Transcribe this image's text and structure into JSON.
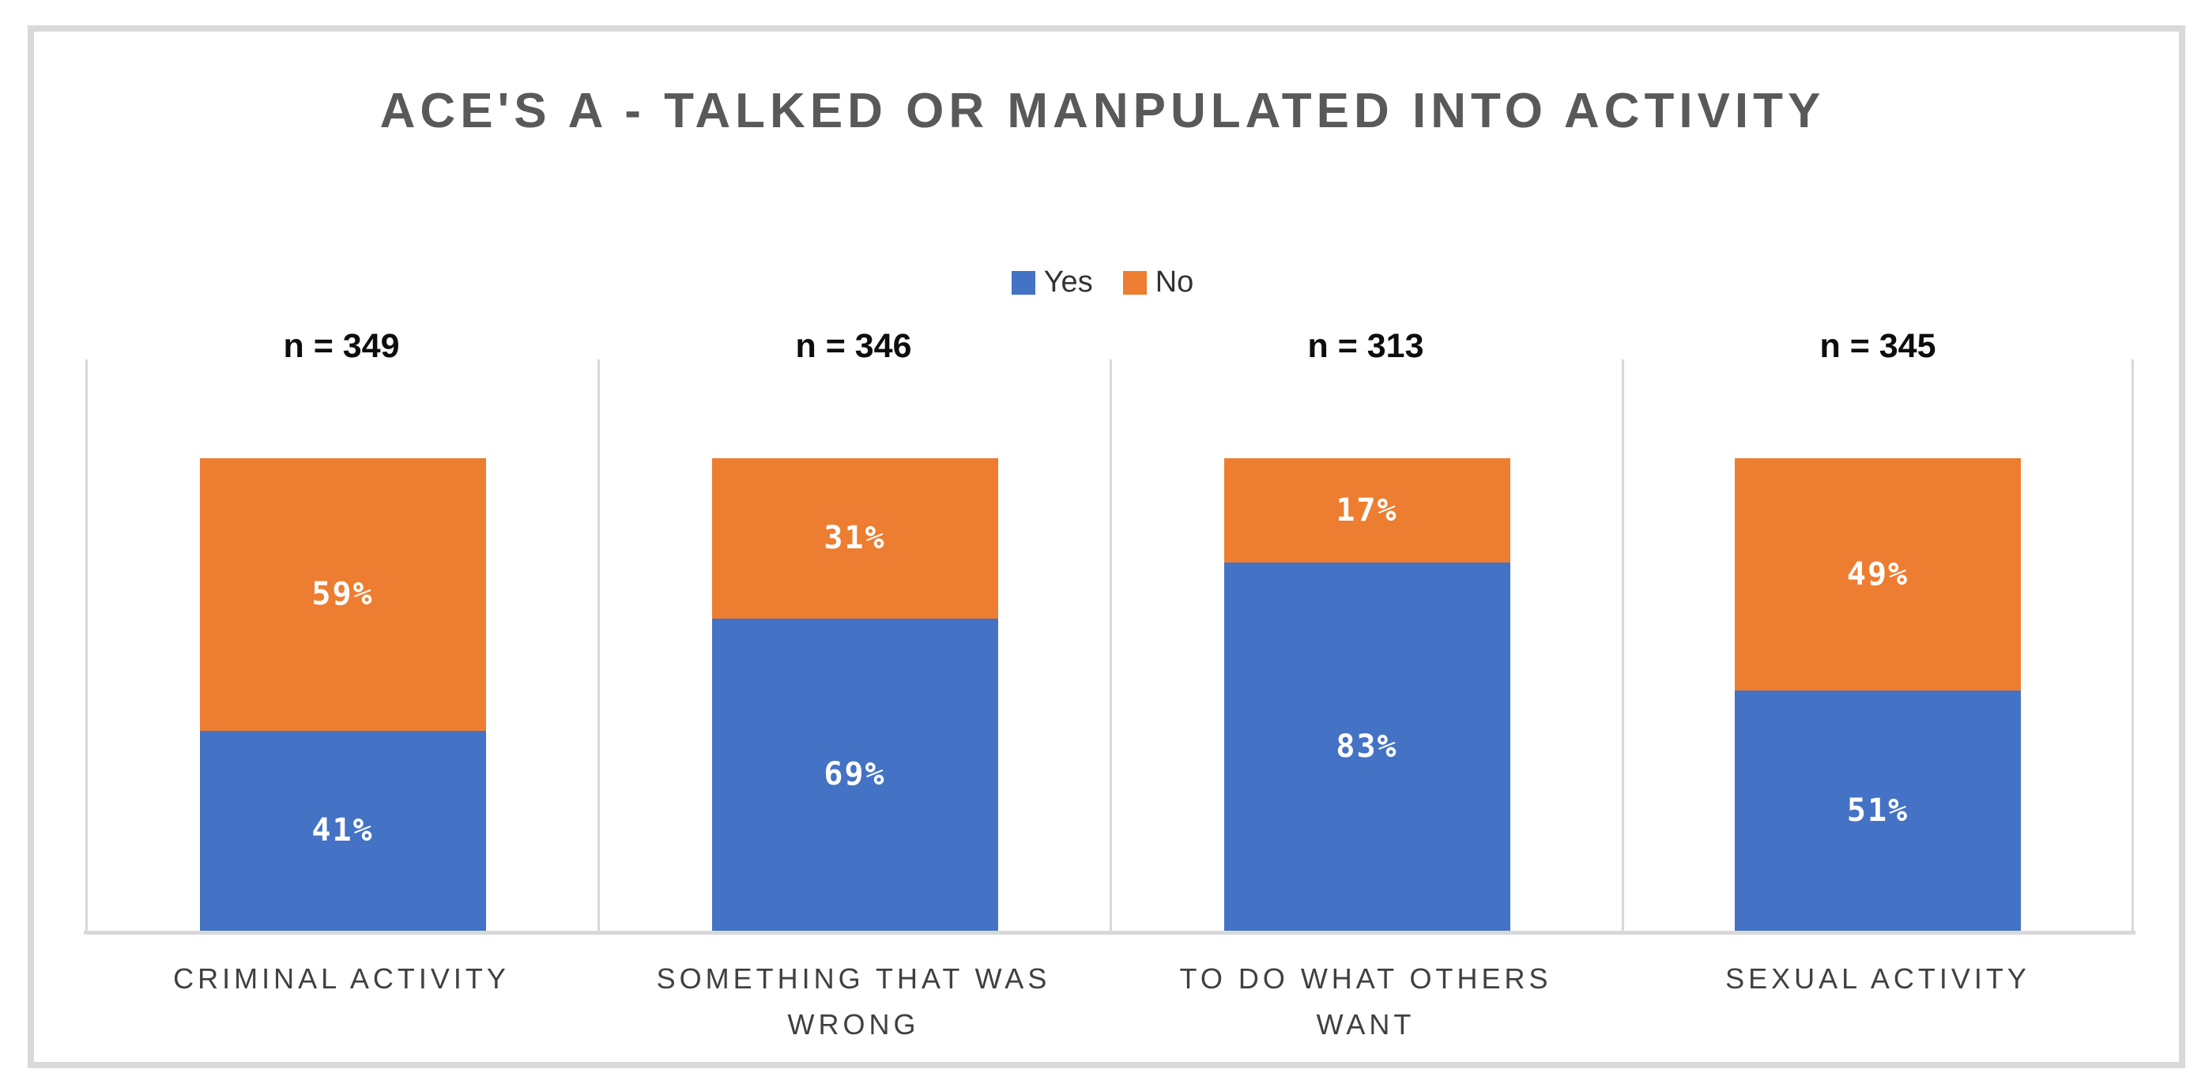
{
  "frame": {
    "border_color": "#D9D9D9",
    "background": "#FFFFFF"
  },
  "chart_data": {
    "type": "bar",
    "subtype": "100-percent-stacked-column",
    "title": "ACE'S A - TALKED OR MANPULATED INTO ACTIVITY",
    "title_color": "#595959",
    "categories": [
      "CRIMINAL ACTIVITY",
      "SOMETHING THAT WAS WRONG",
      "TO DO WHAT OTHERS WANT",
      "SEXUAL ACTIVITY"
    ],
    "group_sample_labels": [
      "n = 349",
      "n = 346",
      "n = 313",
      "n = 345"
    ],
    "series": [
      {
        "name": "Yes",
        "color": "#4472C4",
        "values": [
          41,
          69,
          83,
          51
        ]
      },
      {
        "name": "No",
        "color": "#ED7D31",
        "values": [
          59,
          31,
          17,
          49
        ]
      }
    ],
    "data_label_suffix": "%",
    "data_label_color": "#FFFFFF",
    "legend_position": "top",
    "legend_text_color": "#333333",
    "ylim": [
      0,
      100
    ],
    "grid": false,
    "axis_line_color": "#D9D9D9",
    "separator_line_color": "#D9D9D9",
    "category_label_color": "#404040",
    "sample_label_color": "#0D0D0D"
  }
}
